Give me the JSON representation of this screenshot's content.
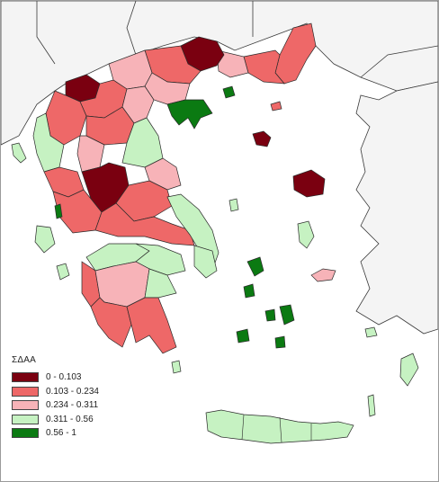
{
  "legend": {
    "title": "ΣΔΑΑ",
    "items": [
      {
        "label": "0 - 0.103",
        "color": "#7a0010"
      },
      {
        "label": "0.103 - 0.234",
        "color": "#ee6868"
      },
      {
        "label": "0.234 - 0.311",
        "color": "#f7b3b8"
      },
      {
        "label": "0.311 - 0.56",
        "color": "#c6f2c2"
      },
      {
        "label": "0.56 - 1",
        "color": "#0b7a12"
      }
    ]
  },
  "colors": {
    "land_outside": "#f4f4f4",
    "sea": "#ffffff",
    "border": "#2a2a2a"
  }
}
